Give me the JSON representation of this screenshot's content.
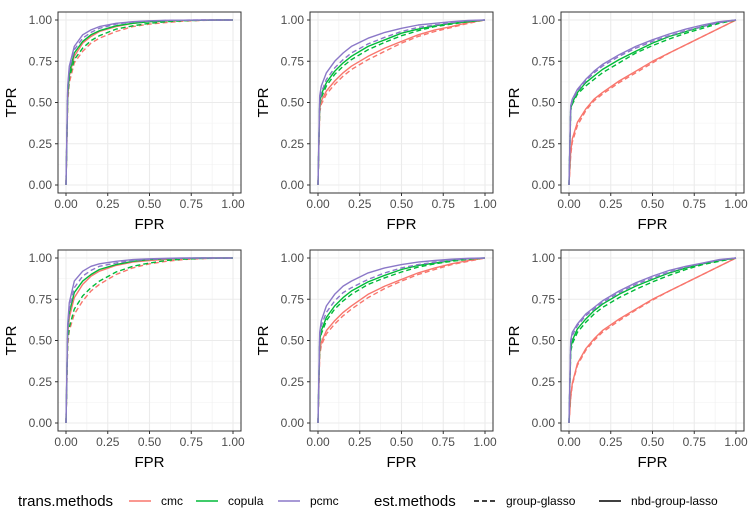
{
  "chart_data": {
    "type": "line",
    "panels": [
      {
        "x_label": "FPR",
        "y_label": "TPR"
      },
      {
        "x_label": "FPR",
        "y_label": "TPR"
      },
      {
        "x_label": "FPR",
        "y_label": "TPR"
      },
      {
        "x_label": "FPR",
        "y_label": "TPR"
      },
      {
        "x_label": "FPR",
        "y_label": "TPR"
      },
      {
        "x_label": "FPR",
        "y_label": "TPR"
      }
    ],
    "xlim": [
      0,
      1
    ],
    "ylim": [
      0,
      1
    ],
    "x_ticks": [
      "0.00",
      "0.25",
      "0.50",
      "0.75",
      "1.00"
    ],
    "y_ticks": [
      "0.00",
      "0.25",
      "0.50",
      "0.75",
      "1.00"
    ],
    "series_fpr": [
      0,
      0.01,
      0.02,
      0.05,
      0.1,
      0.15,
      0.2,
      0.3,
      0.4,
      0.5,
      0.6,
      0.7,
      0.8,
      0.9,
      1.0
    ],
    "series_by_panel": [
      [
        {
          "trans": "cmc",
          "est": "nbd-group-lasso",
          "tpr": [
            0,
            0.52,
            0.66,
            0.78,
            0.86,
            0.9,
            0.93,
            0.96,
            0.98,
            0.99,
            0.995,
            0.998,
            0.999,
            1.0,
            1.0
          ]
        },
        {
          "trans": "cmc",
          "est": "group-glasso",
          "tpr": [
            0,
            0.5,
            0.62,
            0.74,
            0.81,
            0.86,
            0.89,
            0.93,
            0.96,
            0.975,
            0.985,
            0.993,
            0.997,
            0.999,
            1.0
          ]
        },
        {
          "trans": "copula",
          "est": "nbd-group-lasso",
          "tpr": [
            0,
            0.55,
            0.68,
            0.8,
            0.87,
            0.91,
            0.935,
            0.965,
            0.98,
            0.99,
            0.995,
            0.998,
            0.999,
            1.0,
            1.0
          ]
        },
        {
          "trans": "copula",
          "est": "group-glasso",
          "tpr": [
            0,
            0.53,
            0.65,
            0.76,
            0.83,
            0.875,
            0.905,
            0.945,
            0.965,
            0.98,
            0.99,
            0.995,
            0.998,
            1.0,
            1.0
          ]
        },
        {
          "trans": "pcmc",
          "est": "nbd-group-lasso",
          "tpr": [
            0,
            0.6,
            0.72,
            0.84,
            0.91,
            0.94,
            0.96,
            0.98,
            0.99,
            0.995,
            0.998,
            0.999,
            1.0,
            1.0,
            1.0
          ]
        },
        {
          "trans": "pcmc",
          "est": "group-glasso",
          "tpr": [
            0,
            0.58,
            0.7,
            0.82,
            0.89,
            0.925,
            0.95,
            0.975,
            0.988,
            0.994,
            0.997,
            0.999,
            1.0,
            1.0,
            1.0
          ]
        }
      ],
      [
        {
          "trans": "cmc",
          "est": "nbd-group-lasso",
          "tpr": [
            0,
            0.46,
            0.51,
            0.57,
            0.63,
            0.68,
            0.72,
            0.78,
            0.83,
            0.87,
            0.91,
            0.94,
            0.96,
            0.985,
            1.0
          ]
        },
        {
          "trans": "cmc",
          "est": "group-glasso",
          "tpr": [
            0,
            0.44,
            0.49,
            0.55,
            0.61,
            0.66,
            0.7,
            0.76,
            0.81,
            0.86,
            0.9,
            0.93,
            0.955,
            0.98,
            1.0
          ]
        },
        {
          "trans": "copula",
          "est": "nbd-group-lasso",
          "tpr": [
            0,
            0.5,
            0.55,
            0.62,
            0.69,
            0.74,
            0.78,
            0.84,
            0.88,
            0.92,
            0.945,
            0.965,
            0.98,
            0.99,
            1.0
          ]
        },
        {
          "trans": "copula",
          "est": "group-glasso",
          "tpr": [
            0,
            0.48,
            0.53,
            0.6,
            0.67,
            0.72,
            0.76,
            0.82,
            0.865,
            0.905,
            0.935,
            0.96,
            0.975,
            0.99,
            1.0
          ]
        },
        {
          "trans": "pcmc",
          "est": "nbd-group-lasso",
          "tpr": [
            0,
            0.54,
            0.6,
            0.68,
            0.75,
            0.8,
            0.84,
            0.89,
            0.925,
            0.95,
            0.97,
            0.98,
            0.99,
            0.997,
            1.0
          ]
        },
        {
          "trans": "pcmc",
          "est": "group-glasso",
          "tpr": [
            0,
            0.5,
            0.56,
            0.64,
            0.71,
            0.76,
            0.8,
            0.855,
            0.895,
            0.93,
            0.955,
            0.97,
            0.985,
            0.995,
            1.0
          ]
        }
      ],
      [
        {
          "trans": "cmc",
          "est": "nbd-group-lasso",
          "tpr": [
            0,
            0.2,
            0.28,
            0.38,
            0.46,
            0.52,
            0.56,
            0.63,
            0.69,
            0.75,
            0.8,
            0.85,
            0.9,
            0.95,
            1.0
          ]
        },
        {
          "trans": "cmc",
          "est": "group-glasso",
          "tpr": [
            0,
            0.18,
            0.26,
            0.36,
            0.45,
            0.51,
            0.55,
            0.62,
            0.68,
            0.74,
            0.8,
            0.85,
            0.9,
            0.95,
            1.0
          ]
        },
        {
          "trans": "copula",
          "est": "nbd-group-lasso",
          "tpr": [
            0,
            0.46,
            0.5,
            0.56,
            0.62,
            0.66,
            0.7,
            0.76,
            0.81,
            0.86,
            0.9,
            0.93,
            0.96,
            0.985,
            1.0
          ]
        },
        {
          "trans": "copula",
          "est": "group-glasso",
          "tpr": [
            0,
            0.45,
            0.49,
            0.55,
            0.6,
            0.64,
            0.68,
            0.74,
            0.8,
            0.845,
            0.885,
            0.92,
            0.95,
            0.98,
            1.0
          ]
        },
        {
          "trans": "pcmc",
          "est": "nbd-group-lasso",
          "tpr": [
            0,
            0.48,
            0.52,
            0.58,
            0.64,
            0.69,
            0.73,
            0.79,
            0.84,
            0.88,
            0.915,
            0.945,
            0.97,
            0.99,
            1.0
          ]
        },
        {
          "trans": "pcmc",
          "est": "group-glasso",
          "tpr": [
            0,
            0.47,
            0.51,
            0.57,
            0.63,
            0.68,
            0.72,
            0.78,
            0.83,
            0.87,
            0.905,
            0.935,
            0.96,
            0.985,
            1.0
          ]
        }
      ],
      [
        {
          "trans": "cmc",
          "est": "nbd-group-lasso",
          "tpr": [
            0,
            0.54,
            0.64,
            0.76,
            0.84,
            0.89,
            0.92,
            0.955,
            0.975,
            0.985,
            0.992,
            0.996,
            0.999,
            1.0,
            1.0
          ]
        },
        {
          "trans": "cmc",
          "est": "group-glasso",
          "tpr": [
            0,
            0.47,
            0.56,
            0.66,
            0.74,
            0.8,
            0.84,
            0.9,
            0.94,
            0.965,
            0.98,
            0.99,
            0.995,
            0.999,
            1.0
          ]
        },
        {
          "trans": "copula",
          "est": "nbd-group-lasso",
          "tpr": [
            0,
            0.57,
            0.67,
            0.79,
            0.86,
            0.9,
            0.93,
            0.96,
            0.98,
            0.99,
            0.995,
            0.998,
            1.0,
            1.0,
            1.0
          ]
        },
        {
          "trans": "copula",
          "est": "group-glasso",
          "tpr": [
            0,
            0.5,
            0.58,
            0.69,
            0.77,
            0.82,
            0.86,
            0.915,
            0.95,
            0.97,
            0.985,
            0.993,
            0.997,
            0.999,
            1.0
          ]
        },
        {
          "trans": "pcmc",
          "est": "nbd-group-lasso",
          "tpr": [
            0,
            0.6,
            0.73,
            0.86,
            0.92,
            0.95,
            0.965,
            0.98,
            0.99,
            0.995,
            0.998,
            1.0,
            1.0,
            1.0,
            1.0
          ]
        },
        {
          "trans": "pcmc",
          "est": "group-glasso",
          "tpr": [
            0,
            0.57,
            0.69,
            0.82,
            0.89,
            0.925,
            0.95,
            0.97,
            0.985,
            0.992,
            0.996,
            0.999,
            1.0,
            1.0,
            1.0
          ]
        }
      ],
      [
        {
          "trans": "cmc",
          "est": "nbd-group-lasso",
          "tpr": [
            0,
            0.43,
            0.49,
            0.56,
            0.62,
            0.67,
            0.71,
            0.78,
            0.83,
            0.87,
            0.91,
            0.94,
            0.965,
            0.985,
            1.0
          ]
        },
        {
          "trans": "cmc",
          "est": "group-glasso",
          "tpr": [
            0,
            0.41,
            0.47,
            0.54,
            0.6,
            0.65,
            0.69,
            0.76,
            0.815,
            0.86,
            0.9,
            0.93,
            0.96,
            0.98,
            1.0
          ]
        },
        {
          "trans": "copula",
          "est": "nbd-group-lasso",
          "tpr": [
            0,
            0.5,
            0.56,
            0.64,
            0.71,
            0.76,
            0.8,
            0.855,
            0.895,
            0.93,
            0.955,
            0.97,
            0.985,
            0.995,
            1.0
          ]
        },
        {
          "trans": "copula",
          "est": "group-glasso",
          "tpr": [
            0,
            0.48,
            0.54,
            0.62,
            0.69,
            0.74,
            0.78,
            0.84,
            0.88,
            0.915,
            0.945,
            0.965,
            0.98,
            0.992,
            1.0
          ]
        },
        {
          "trans": "pcmc",
          "est": "nbd-group-lasso",
          "tpr": [
            0,
            0.55,
            0.62,
            0.71,
            0.78,
            0.83,
            0.86,
            0.91,
            0.94,
            0.96,
            0.975,
            0.985,
            0.993,
            0.998,
            1.0
          ]
        },
        {
          "trans": "pcmc",
          "est": "group-glasso",
          "tpr": [
            0,
            0.52,
            0.59,
            0.67,
            0.74,
            0.79,
            0.82,
            0.87,
            0.91,
            0.94,
            0.96,
            0.975,
            0.988,
            0.996,
            1.0
          ]
        }
      ],
      [
        {
          "trans": "cmc",
          "est": "nbd-group-lasso",
          "tpr": [
            0,
            0.16,
            0.24,
            0.36,
            0.45,
            0.51,
            0.56,
            0.63,
            0.69,
            0.75,
            0.8,
            0.85,
            0.9,
            0.95,
            1.0
          ]
        },
        {
          "trans": "cmc",
          "est": "group-glasso",
          "tpr": [
            0,
            0.15,
            0.23,
            0.35,
            0.44,
            0.5,
            0.55,
            0.62,
            0.685,
            0.745,
            0.8,
            0.85,
            0.9,
            0.95,
            1.0
          ]
        },
        {
          "trans": "copula",
          "est": "nbd-group-lasso",
          "tpr": [
            0,
            0.45,
            0.5,
            0.57,
            0.63,
            0.68,
            0.72,
            0.78,
            0.83,
            0.87,
            0.91,
            0.94,
            0.965,
            0.985,
            1.0
          ]
        },
        {
          "trans": "copula",
          "est": "group-glasso",
          "tpr": [
            0,
            0.43,
            0.48,
            0.55,
            0.61,
            0.66,
            0.7,
            0.76,
            0.81,
            0.855,
            0.895,
            0.93,
            0.96,
            0.98,
            1.0
          ]
        },
        {
          "trans": "pcmc",
          "est": "nbd-group-lasso",
          "tpr": [
            0,
            0.5,
            0.55,
            0.6,
            0.66,
            0.7,
            0.74,
            0.8,
            0.85,
            0.89,
            0.925,
            0.95,
            0.97,
            0.99,
            1.0
          ]
        },
        {
          "trans": "pcmc",
          "est": "group-glasso",
          "tpr": [
            0,
            0.48,
            0.53,
            0.59,
            0.65,
            0.69,
            0.73,
            0.79,
            0.84,
            0.88,
            0.915,
            0.945,
            0.968,
            0.988,
            1.0
          ]
        }
      ]
    ],
    "legend": {
      "trans_title": "trans.methods",
      "trans_items": [
        {
          "label": "cmc",
          "color": "#F8766D"
        },
        {
          "label": "copula",
          "color": "#00BA38"
        },
        {
          "label": "pcmc",
          "color": "#8B78C8"
        }
      ],
      "est_title": "est.methods",
      "est_items": [
        {
          "label": "group-glasso",
          "dash": "dashed"
        },
        {
          "label": "nbd-group-lasso",
          "dash": "solid"
        }
      ],
      "position": "bottom"
    }
  }
}
